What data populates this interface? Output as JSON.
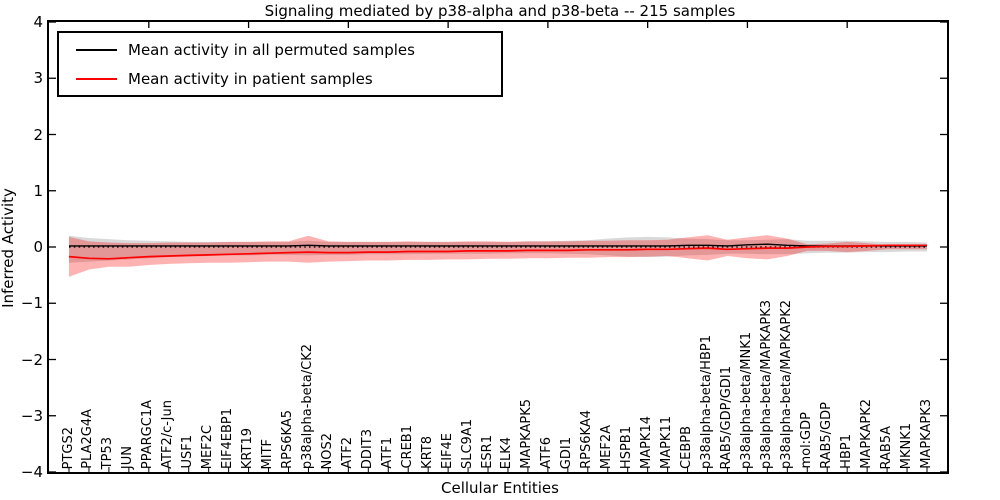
{
  "chart_data": {
    "type": "line",
    "title": "Signaling mediated by p38-alpha and p38-beta -- 215 samples",
    "xlabel": "Cellular Entities",
    "ylabel": "Inferred Activity",
    "ylim": [
      -4,
      4
    ],
    "yticks": [
      4,
      3,
      2,
      1,
      0,
      -1,
      -2,
      -3,
      -4
    ],
    "grid": false,
    "legend_position": "upper left",
    "zero_line": {
      "value": 0,
      "style": "dotted",
      "color": "#000000"
    },
    "categories": [
      "PTGS2",
      "PLA2G4A",
      "TP53",
      "JUN",
      "PPARGC1A",
      "ATF2/c-Jun",
      "USF1",
      "MEF2C",
      "EIF4EBP1",
      "KRT19",
      "MITF",
      "RPS6KA5",
      "p38alpha-beta/CK2",
      "NOS2",
      "ATF2",
      "DDIT3",
      "ATF1",
      "CREB1",
      "KRT8",
      "EIF4E",
      "SLC9A1",
      "ESR1",
      "ELK4",
      "MAPKAPK5",
      "ATF6",
      "GDI1",
      "RPS6KA4",
      "MEF2A",
      "HSPB1",
      "MAPK14",
      "MAPK11",
      "CEBPB",
      "p38alpha-beta/HBP1",
      "RAB5/GDP/GDI1",
      "p38alpha-beta/MNK1",
      "p38alpha-beta/MAPKAPK3",
      "p38alpha-beta/MAPKAPK2",
      "mol:GDP",
      "RAB5/GDP",
      "HBP1",
      "MAPKAPK2",
      "RAB5A",
      "MKNK1",
      "MAPKAPK3"
    ],
    "series": [
      {
        "name": "Mean activity in all permuted samples",
        "color": "#000000",
        "values": [
          0.02,
          0.02,
          0.02,
          0.02,
          0.02,
          0.02,
          0.02,
          0.02,
          0.02,
          0.02,
          0.02,
          0.02,
          0.03,
          0.02,
          0.02,
          0.02,
          0.02,
          0.02,
          0.02,
          0.02,
          0.02,
          0.02,
          0.02,
          0.02,
          0.02,
          0.02,
          0.02,
          0.02,
          0.02,
          0.02,
          0.02,
          0.03,
          0.03,
          0.02,
          0.04,
          0.05,
          0.03,
          0.02,
          0.02,
          0.02,
          0.02,
          0.02,
          0.02,
          0.02
        ]
      },
      {
        "name": "Mean activity in patient samples",
        "color": "#ff0000",
        "values": [
          -0.17,
          -0.2,
          -0.21,
          -0.19,
          -0.17,
          -0.16,
          -0.15,
          -0.14,
          -0.13,
          -0.12,
          -0.11,
          -0.1,
          -0.09,
          -0.1,
          -0.1,
          -0.09,
          -0.09,
          -0.08,
          -0.08,
          -0.08,
          -0.07,
          -0.07,
          -0.07,
          -0.06,
          -0.06,
          -0.06,
          -0.05,
          -0.05,
          -0.05,
          -0.04,
          -0.04,
          -0.03,
          -0.02,
          -0.04,
          -0.03,
          -0.02,
          -0.02,
          0.0,
          0.01,
          0.01,
          0.02,
          0.03,
          0.03,
          0.03
        ]
      }
    ],
    "bands": [
      {
        "name": "permuted-samples-spread-band",
        "color": "rgba(128,128,128,0.30)",
        "upper": [
          0.2,
          0.16,
          0.14,
          0.12,
          0.11,
          0.1,
          0.09,
          0.09,
          0.09,
          0.09,
          0.09,
          0.09,
          0.11,
          0.09,
          0.09,
          0.09,
          0.09,
          0.09,
          0.09,
          0.09,
          0.09,
          0.09,
          0.09,
          0.1,
          0.1,
          0.11,
          0.12,
          0.15,
          0.17,
          0.18,
          0.17,
          0.15,
          0.14,
          0.12,
          0.12,
          0.13,
          0.14,
          0.11,
          0.11,
          0.11,
          0.1,
          0.09,
          0.09,
          0.08
        ],
        "lower": [
          -0.28,
          -0.26,
          -0.24,
          -0.22,
          -0.2,
          -0.18,
          -0.17,
          -0.16,
          -0.15,
          -0.15,
          -0.14,
          -0.14,
          -0.15,
          -0.14,
          -0.14,
          -0.13,
          -0.13,
          -0.13,
          -0.12,
          -0.12,
          -0.12,
          -0.12,
          -0.11,
          -0.11,
          -0.11,
          -0.12,
          -0.13,
          -0.15,
          -0.17,
          -0.18,
          -0.17,
          -0.15,
          -0.14,
          -0.12,
          -0.12,
          -0.13,
          -0.13,
          -0.11,
          -0.1,
          -0.1,
          -0.09,
          -0.09,
          -0.08,
          -0.08
        ]
      },
      {
        "name": "patient-samples-spread-band",
        "color": "rgba(255,0,0,0.30)",
        "upper": [
          0.18,
          0.1,
          0.08,
          0.07,
          0.07,
          0.08,
          0.08,
          0.08,
          0.09,
          0.09,
          0.1,
          0.1,
          0.2,
          0.1,
          0.09,
          0.09,
          0.09,
          0.1,
          0.09,
          0.09,
          0.1,
          0.1,
          0.09,
          0.1,
          0.1,
          0.1,
          0.11,
          0.11,
          0.12,
          0.12,
          0.13,
          0.17,
          0.21,
          0.13,
          0.17,
          0.21,
          0.15,
          0.05,
          0.06,
          0.09,
          0.07,
          0.03,
          0.03,
          0.03
        ],
        "lower": [
          -0.53,
          -0.4,
          -0.35,
          -0.35,
          -0.32,
          -0.3,
          -0.29,
          -0.28,
          -0.28,
          -0.27,
          -0.26,
          -0.26,
          -0.28,
          -0.26,
          -0.25,
          -0.24,
          -0.24,
          -0.23,
          -0.23,
          -0.22,
          -0.22,
          -0.21,
          -0.21,
          -0.2,
          -0.2,
          -0.19,
          -0.19,
          -0.18,
          -0.18,
          -0.17,
          -0.16,
          -0.2,
          -0.24,
          -0.16,
          -0.2,
          -0.22,
          -0.16,
          -0.07,
          -0.07,
          -0.09,
          -0.07,
          -0.04,
          -0.04,
          -0.04
        ]
      }
    ],
    "legend": {
      "entries": [
        {
          "label": "Mean activity in all permuted samples",
          "color": "#000000"
        },
        {
          "label": "Mean activity in patient samples",
          "color": "#ff0000"
        }
      ]
    }
  }
}
